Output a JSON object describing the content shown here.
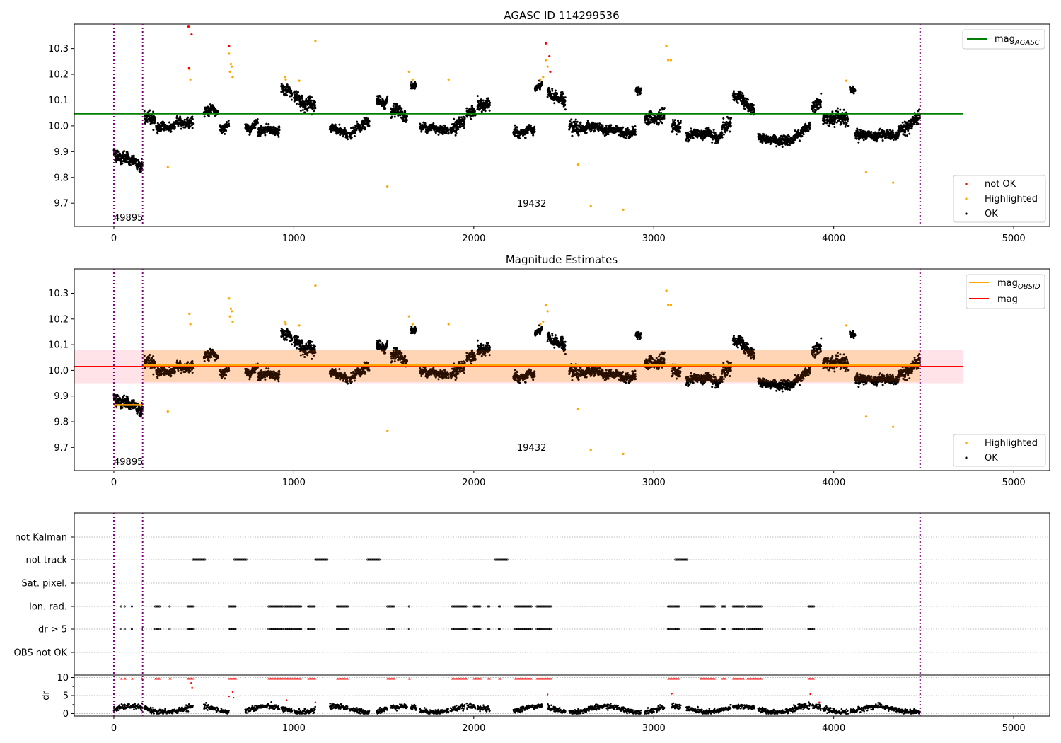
{
  "chart_data": [
    {
      "type": "scatter",
      "title": "AGASC ID 114299536",
      "xlim": [
        -220,
        5200
      ],
      "ylim": [
        9.61,
        10.395
      ],
      "x_ticks": [
        0,
        1000,
        2000,
        3000,
        4000,
        5000
      ],
      "y_ticks": [
        9.7,
        9.8,
        9.9,
        10.0,
        10.1,
        10.2,
        10.3
      ],
      "y_tick_labels": [
        "9.7",
        "9.8",
        "9.9",
        "10.0",
        "10.1",
        "10.2",
        "10.3"
      ],
      "x_tick_labels": [
        "0",
        "1000",
        "2000",
        "3000",
        "4000",
        "5000"
      ],
      "hline": {
        "name": "mag_AGASC",
        "value": 10.047,
        "x_range": [
          -220,
          4720
        ],
        "color": "#008000"
      },
      "vlines": [
        0,
        160,
        4480
      ],
      "annotations": [
        {
          "text": "49895",
          "x": 0,
          "y": 9.645
        },
        {
          "text": "19432",
          "x": 2240,
          "y": 9.695
        }
      ],
      "legend_lines": [
        {
          "label_main": "mag",
          "label_sub": "AGASC",
          "color": "#008000"
        }
      ],
      "legend_points": [
        {
          "label": "not OK",
          "color": "#ff0000"
        },
        {
          "label": "Highlighted",
          "color": "#ffa500"
        },
        {
          "label": "OK",
          "color": "#000000"
        }
      ],
      "highlighted": [
        [
          300,
          9.84
        ],
        [
          420,
          10.22
        ],
        [
          425,
          10.18
        ],
        [
          640,
          10.28
        ],
        [
          645,
          10.21
        ],
        [
          650,
          10.24
        ],
        [
          655,
          10.23
        ],
        [
          660,
          10.19
        ],
        [
          950,
          10.19
        ],
        [
          955,
          10.18
        ],
        [
          1030,
          10.175
        ],
        [
          1120,
          10.33
        ],
        [
          1520,
          9.765
        ],
        [
          1640,
          10.21
        ],
        [
          1660,
          10.18
        ],
        [
          1860,
          10.18
        ],
        [
          2370,
          10.18
        ],
        [
          2385,
          10.19
        ],
        [
          2400,
          10.255
        ],
        [
          2410,
          10.23
        ],
        [
          2580,
          9.85
        ],
        [
          2650,
          9.69
        ],
        [
          2830,
          9.675
        ],
        [
          3070,
          10.31
        ],
        [
          3080,
          10.255
        ],
        [
          3095,
          10.255
        ],
        [
          4070,
          10.175
        ],
        [
          4180,
          9.82
        ],
        [
          4330,
          9.78
        ]
      ],
      "not_ok": [
        [
          415,
          10.385
        ],
        [
          432,
          10.355
        ],
        [
          418,
          10.225
        ],
        [
          640,
          10.31
        ],
        [
          2400,
          10.32
        ],
        [
          2420,
          10.27
        ],
        [
          2425,
          10.21
        ]
      ]
    },
    {
      "type": "scatter",
      "title": "Magnitude Estimates",
      "xlim": [
        -220,
        5200
      ],
      "ylim": [
        9.61,
        10.395
      ],
      "x_ticks": [
        0,
        1000,
        2000,
        3000,
        4000,
        5000
      ],
      "y_ticks": [
        9.7,
        9.8,
        9.9,
        10.0,
        10.1,
        10.2,
        10.3
      ],
      "y_tick_labels": [
        "9.7",
        "9.8",
        "9.9",
        "10.0",
        "10.1",
        "10.2",
        "10.3"
      ],
      "x_tick_labels": [
        "0",
        "1000",
        "2000",
        "3000",
        "4000",
        "5000"
      ],
      "mag": {
        "value": 10.015,
        "band": [
          9.95,
          10.08
        ],
        "x_range": [
          -220,
          4720
        ],
        "color": "#ff0000"
      },
      "mag_obsid": [
        {
          "x_range": [
            0,
            160
          ],
          "value": 9.865,
          "band": [
            9.85,
            9.88
          ]
        },
        {
          "x_range": [
            160,
            4480
          ],
          "value": 10.02,
          "band": [
            9.955,
            10.08
          ]
        }
      ],
      "vlines": [
        0,
        160,
        4480
      ],
      "annotations": [
        {
          "text": "49895",
          "x": 0,
          "y": 9.645
        },
        {
          "text": "19432",
          "x": 2240,
          "y": 9.695
        }
      ],
      "legend_lines": [
        {
          "label_main": "mag",
          "label_sub": "OBSID",
          "color": "#ffa500"
        },
        {
          "label_main": "mag",
          "label_sub": "",
          "color": "#ff0000"
        }
      ],
      "legend_points": [
        {
          "label": "Highlighted",
          "color": "#ffa500"
        },
        {
          "label": "OK",
          "color": "#000000"
        }
      ]
    },
    {
      "type": "scatter",
      "xlim": [
        -220,
        5200
      ],
      "x_ticks": [
        0,
        1000,
        2000,
        3000,
        4000,
        5000
      ],
      "x_tick_labels": [
        "0",
        "1000",
        "2000",
        "3000",
        "4000",
        "5000"
      ],
      "flag_rows": [
        "not Kalman",
        "not track",
        "Sat. pixel.",
        "Ion. rad.",
        "dr > 5",
        "OBS not OK"
      ],
      "flag_ranges": {
        "not track": [
          [
            440,
            510
          ],
          [
            670,
            740
          ],
          [
            1120,
            1190
          ],
          [
            1410,
            1480
          ],
          [
            2120,
            2190
          ],
          [
            3120,
            3190
          ]
        ],
        "Ion. rad.": [
          [
            40,
            45
          ],
          [
            60,
            65
          ],
          [
            100,
            105
          ],
          [
            230,
            255
          ],
          [
            310,
            315
          ],
          [
            410,
            440
          ],
          [
            640,
            680
          ],
          [
            860,
            940
          ],
          [
            950,
            1040
          ],
          [
            1080,
            1120
          ],
          [
            1240,
            1300
          ],
          [
            1520,
            1560
          ],
          [
            1640,
            1645
          ],
          [
            1880,
            1960
          ],
          [
            2000,
            2040
          ],
          [
            2080,
            2090
          ],
          [
            2140,
            2150
          ],
          [
            2230,
            2320
          ],
          [
            2350,
            2430
          ],
          [
            3080,
            3140
          ],
          [
            3260,
            3340
          ],
          [
            3380,
            3400
          ],
          [
            3440,
            3500
          ],
          [
            3520,
            3600
          ],
          [
            3860,
            3890
          ]
        ],
        "dr > 5": [
          [
            40,
            45
          ],
          [
            60,
            65
          ],
          [
            100,
            105
          ],
          [
            155,
            160
          ],
          [
            230,
            255
          ],
          [
            310,
            315
          ],
          [
            410,
            440
          ],
          [
            640,
            680
          ],
          [
            860,
            940
          ],
          [
            950,
            1040
          ],
          [
            1080,
            1120
          ],
          [
            1240,
            1300
          ],
          [
            1520,
            1560
          ],
          [
            1640,
            1645
          ],
          [
            1880,
            1960
          ],
          [
            2000,
            2040
          ],
          [
            2080,
            2090
          ],
          [
            2140,
            2150
          ],
          [
            2230,
            2320
          ],
          [
            2350,
            2430
          ],
          [
            3080,
            3140
          ],
          [
            3260,
            3340
          ],
          [
            3380,
            3400
          ],
          [
            3440,
            3500
          ],
          [
            3520,
            3600
          ],
          [
            3860,
            3890
          ]
        ]
      },
      "dr_ylabel": "dr",
      "dr_ylim": [
        -0.3,
        10.5
      ],
      "dr_ticks": [
        0,
        5,
        10
      ],
      "dr_tick_labels": [
        "0",
        "5",
        "10"
      ],
      "vlines": [
        0,
        160,
        4480
      ]
    }
  ],
  "ok_series": {
    "segments": [
      [
        0,
        160,
        9.87,
        0.018,
        -0.0003
      ],
      [
        170,
        230,
        10.03,
        0.02,
        0
      ],
      [
        235,
        340,
        9.995,
        0.012,
        0
      ],
      [
        345,
        440,
        10.02,
        0.013,
        0.0002
      ],
      [
        500,
        580,
        10.05,
        0.015,
        0
      ],
      [
        590,
        640,
        10.0,
        0.015,
        0.0004
      ],
      [
        730,
        800,
        9.995,
        0.012,
        0
      ],
      [
        800,
        920,
        9.98,
        0.014,
        0.0001
      ],
      [
        930,
        990,
        10.14,
        0.015,
        -0.0005
      ],
      [
        1000,
        1120,
        10.1,
        0.02,
        -0.0002
      ],
      [
        1200,
        1300,
        9.975,
        0.012,
        -0.0002
      ],
      [
        1310,
        1420,
        9.99,
        0.015,
        0.0005
      ],
      [
        1460,
        1520,
        10.09,
        0.015,
        -0.0003
      ],
      [
        1540,
        1630,
        10.04,
        0.02,
        -0.0004
      ],
      [
        1650,
        1680,
        10.16,
        0.01,
        0
      ],
      [
        1700,
        1860,
        9.995,
        0.012,
        0
      ],
      [
        1870,
        1950,
        10.0,
        0.02,
        0.0004
      ],
      [
        1960,
        2010,
        10.05,
        0.015,
        0
      ],
      [
        2020,
        2090,
        10.08,
        0.02,
        0
      ],
      [
        2220,
        2340,
        9.97,
        0.013,
        0
      ],
      [
        2340,
        2380,
        10.15,
        0.01,
        0
      ],
      [
        2410,
        2510,
        10.11,
        0.018,
        -0.0003
      ],
      [
        2530,
        2600,
        10.0,
        0.02,
        0
      ],
      [
        2600,
        2900,
        9.985,
        0.013,
        0
      ],
      [
        2900,
        2930,
        10.13,
        0.015,
        0
      ],
      [
        2950,
        3060,
        10.03,
        0.02,
        0
      ],
      [
        3100,
        3150,
        10.0,
        0.02,
        0
      ],
      [
        3180,
        3380,
        9.965,
        0.015,
        0
      ],
      [
        3380,
        3430,
        10.0,
        0.02,
        0.0004
      ],
      [
        3440,
        3560,
        10.09,
        0.018,
        -0.0005
      ],
      [
        3580,
        3780,
        9.95,
        0.013,
        0
      ],
      [
        3780,
        3870,
        9.98,
        0.015,
        0.0005
      ],
      [
        3880,
        3930,
        10.08,
        0.02,
        0
      ],
      [
        3940,
        4080,
        10.02,
        0.02,
        -0.0001
      ],
      [
        4090,
        4120,
        10.14,
        0.01,
        0
      ],
      [
        4120,
        4360,
        9.97,
        0.013,
        0
      ],
      [
        4360,
        4480,
        10.01,
        0.02,
        0.0005
      ]
    ]
  }
}
